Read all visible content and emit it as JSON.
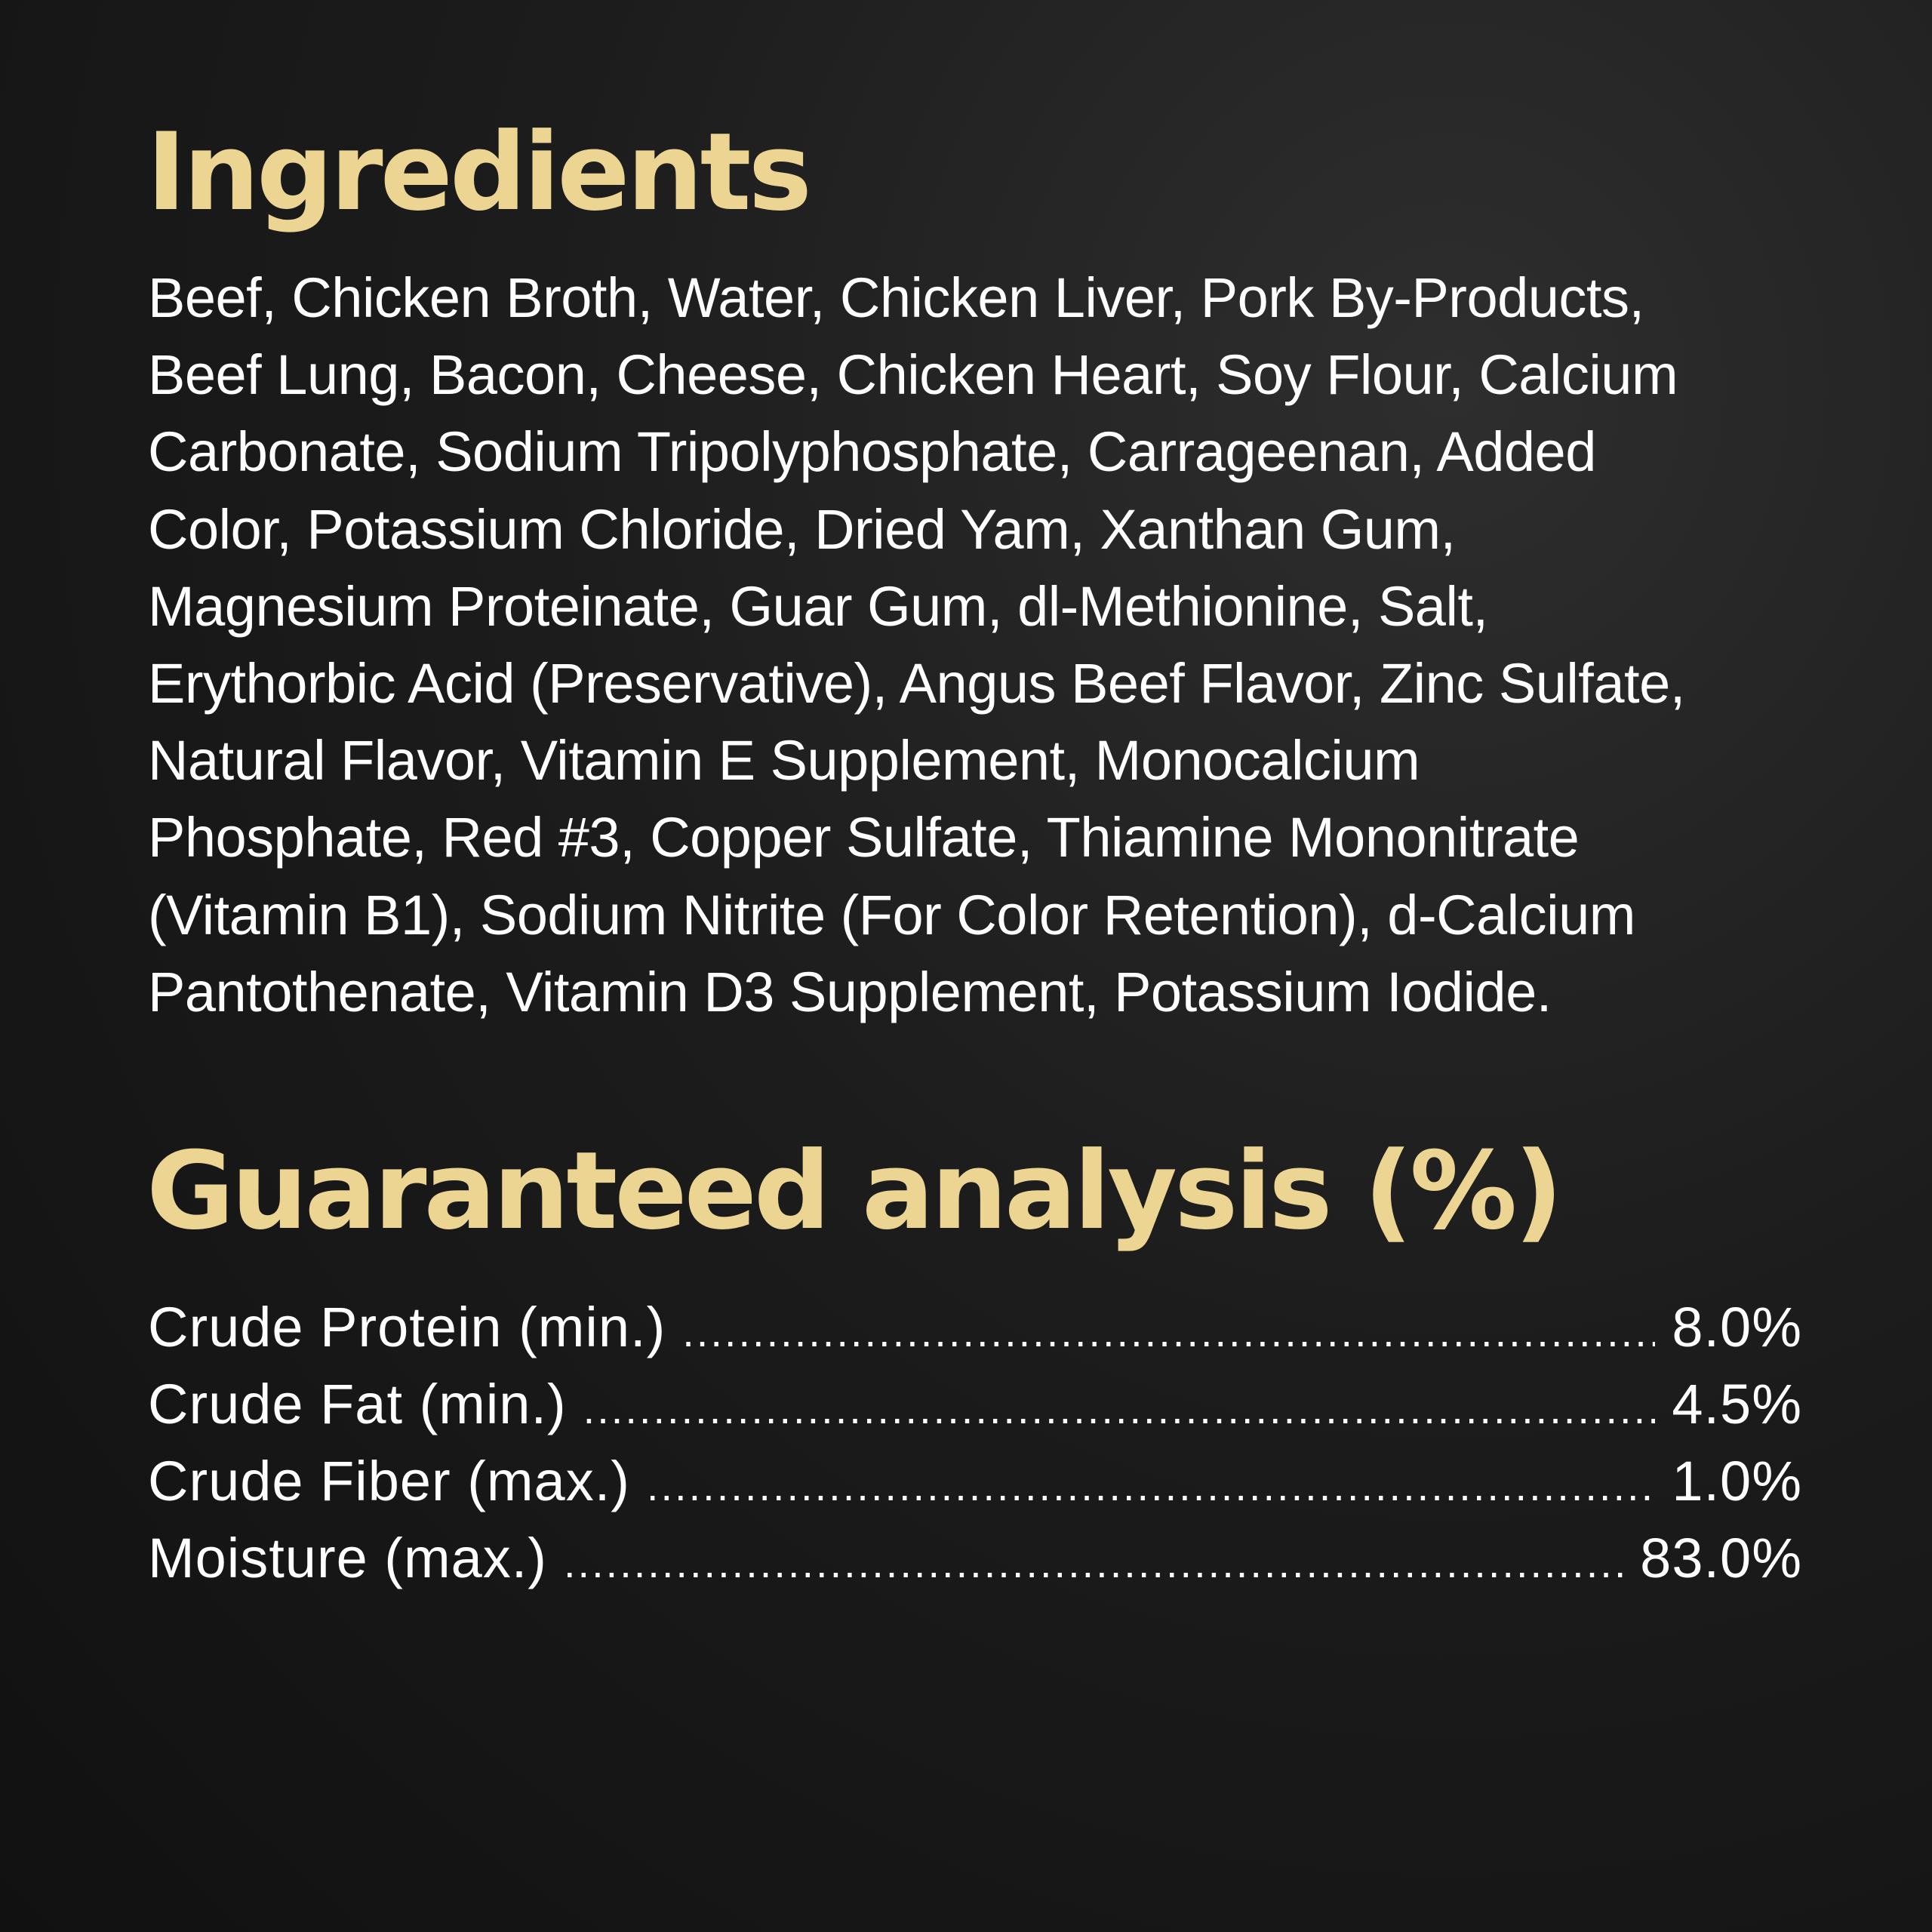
{
  "ingredients": {
    "title": "Ingredients",
    "lines": [
      "Beef, Chicken Broth, Water, Chicken Liver, Pork By-Products,",
      "Beef Lung, Bacon, Cheese, Chicken Heart, Soy Flour, Calcium",
      "Carbonate, Sodium Tripolyphosphate, Carrageenan, Added",
      "Color, Potassium Chloride, Dried Yam, Xanthan Gum,",
      "Magnesium Proteinate, Guar Gum, dl-Methionine, Salt,",
      "Erythorbic Acid (Preservative), Angus Beef Flavor, Zinc Sulfate,",
      "Natural Flavor, Vitamin E Supplement, Monocalcium",
      "Phosphate, Red #3, Copper Sulfate, Thiamine Mononitrate",
      "(Vitamin B1), Sodium Nitrite (For Color Retention), d-Calcium",
      "Pantothenate, Vitamin D3 Supplement, Potassium Iodide."
    ]
  },
  "analysis": {
    "title": "Guaranteed analysis (%)",
    "rows": [
      {
        "label": "Crude Protein (min.)",
        "value": "8.0%"
      },
      {
        "label": "Crude Fat (min.)",
        "value": "4.5%"
      },
      {
        "label": "Crude Fiber (max.)",
        "value": "1.0%"
      },
      {
        "label": "Moisture (max.)",
        "value": "83.0%"
      }
    ]
  },
  "colors": {
    "heading": "#ecd592",
    "text": "#ffffff",
    "background": "#1c1c1c"
  }
}
